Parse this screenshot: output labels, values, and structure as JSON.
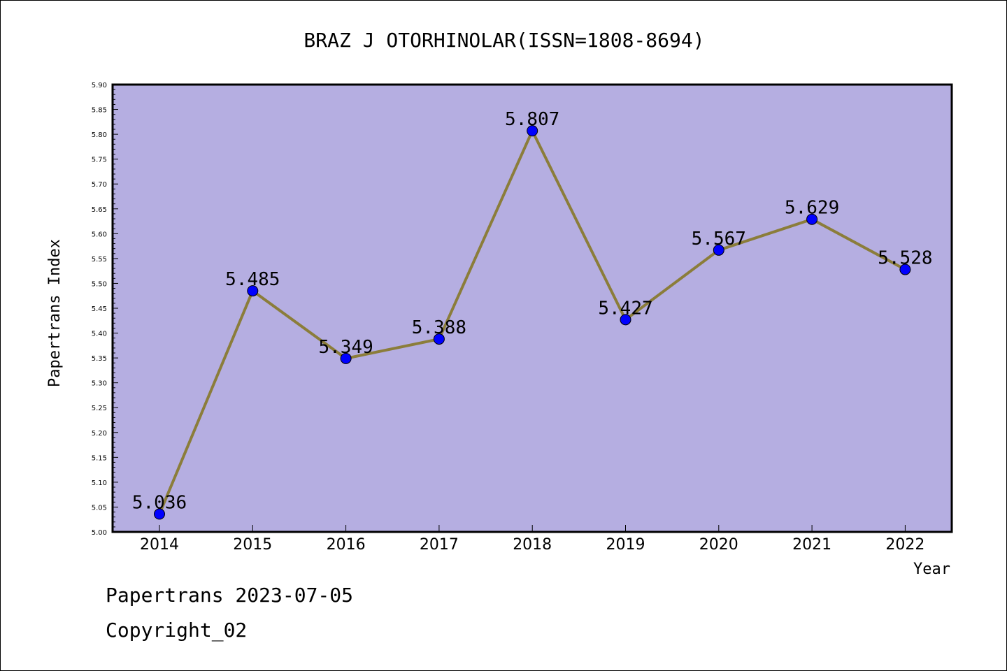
{
  "chart_data": {
    "type": "line",
    "title": "BRAZ J OTORHINOLAR(ISSN=1808-8694)",
    "xlabel": "Year",
    "ylabel": "Papertrans Index",
    "categories": [
      "2014",
      "2015",
      "2016",
      "2017",
      "2018",
      "2019",
      "2020",
      "2021",
      "2022"
    ],
    "series": [
      {
        "values": [
          5.036,
          5.485,
          5.349,
          5.388,
          5.807,
          5.427,
          5.567,
          5.629,
          5.528
        ],
        "labels": [
          "5.036",
          "5.485",
          "5.349",
          "5.388",
          "5.807",
          "5.427",
          "5.567",
          "5.629",
          "5.528"
        ],
        "line_color": "#8b7d3a",
        "marker_color": "#0000ff"
      }
    ],
    "ylim": [
      5.0,
      5.9
    ],
    "yticks": [
      "5.00",
      "5.05",
      "5.10",
      "5.15",
      "5.20",
      "5.25",
      "5.30",
      "5.35",
      "5.40",
      "5.45",
      "5.50",
      "5.55",
      "5.60",
      "5.65",
      "5.70",
      "5.75",
      "5.80",
      "5.85",
      "5.90"
    ],
    "plot_background": "#b5aee1",
    "grid": false,
    "legend": "none"
  },
  "footer": {
    "line1": "Papertrans 2023-07-05",
    "line2": "Copyright_02"
  }
}
